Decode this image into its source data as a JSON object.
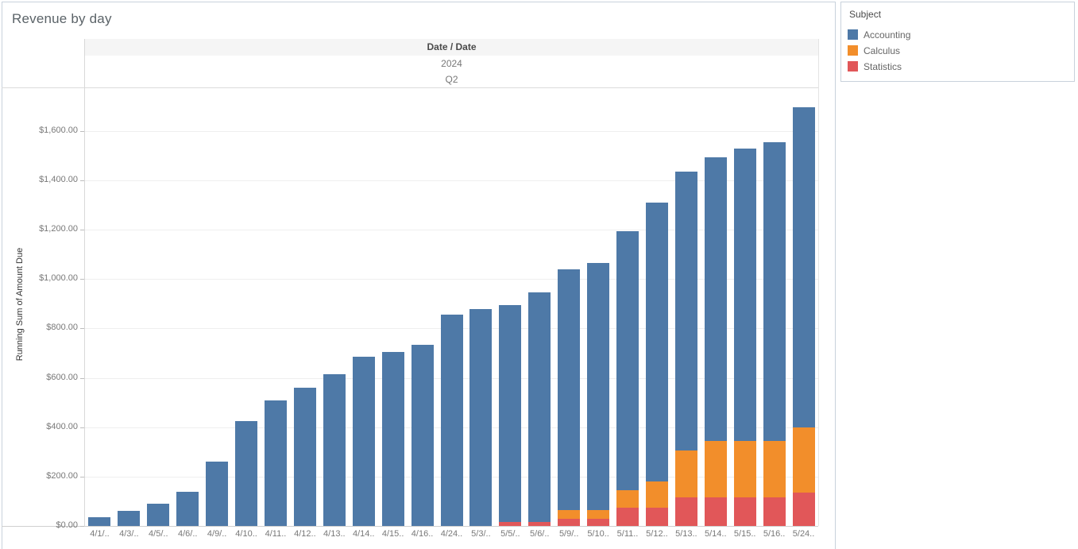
{
  "title": "Revenue by day",
  "header": {
    "field_label": "Date / Date",
    "year": "2024",
    "quarter": "Q2"
  },
  "y_axis": {
    "title": "Running Sum of Amount Due",
    "tick_labels": [
      "$0.00",
      "$200.00",
      "$400.00",
      "$600.00",
      "$800.00",
      "$1,000.00",
      "$1,200.00",
      "$1,400.00",
      "$1,600.00"
    ],
    "tick_values": [
      0,
      200,
      400,
      600,
      800,
      1000,
      1200,
      1400,
      1600
    ]
  },
  "legend": {
    "title": "Subject",
    "items": [
      {
        "label": "Accounting",
        "color": "#4e79a7"
      },
      {
        "label": "Calculus",
        "color": "#f28e2b"
      },
      {
        "label": "Statistics",
        "color": "#e15759"
      }
    ]
  },
  "colors": {
    "accounting": "#4e79a7",
    "calculus": "#f28e2b",
    "statistics": "#e15759",
    "header_band_bg": "#f5f5f5",
    "panel_border": "#c9d2dc",
    "gridline": "#efefef",
    "tick_text": "#787878"
  },
  "chart_data": {
    "type": "bar",
    "stacked": true,
    "title": "Revenue by day",
    "xlabel": "Date / Date (2024 Q2)",
    "ylabel": "Running Sum of Amount Due",
    "ylim": [
      0,
      1777
    ],
    "y_tick_step": 200,
    "grid": true,
    "legend_position": "right",
    "categories": [
      "4/1/..",
      "4/3/..",
      "4/5/..",
      "4/6/..",
      "4/9/..",
      "4/10..",
      "4/11..",
      "4/12..",
      "4/13..",
      "4/14..",
      "4/15..",
      "4/16..",
      "4/24..",
      "5/3/..",
      "5/5/..",
      "5/6/..",
      "5/9/..",
      "5/10..",
      "5/11..",
      "5/12..",
      "5/13..",
      "5/14..",
      "5/15..",
      "5/16..",
      "5/24.."
    ],
    "series": [
      {
        "name": "Accounting",
        "color": "#4e79a7",
        "values": [
          35,
          60,
          90,
          140,
          260,
          425,
          510,
          560,
          615,
          685,
          705,
          735,
          855,
          880,
          880,
          930,
          975,
          1000,
          1050,
          1130,
          1130,
          1150,
          1185,
          1210,
          1295
        ]
      },
      {
        "name": "Calculus",
        "color": "#f28e2b",
        "values": [
          0,
          0,
          0,
          0,
          0,
          0,
          0,
          0,
          0,
          0,
          0,
          0,
          0,
          0,
          0,
          0,
          35,
          35,
          70,
          105,
          190,
          230,
          230,
          230,
          265
        ]
      },
      {
        "name": "Statistics",
        "color": "#e15759",
        "values": [
          0,
          0,
          0,
          0,
          0,
          0,
          0,
          0,
          0,
          0,
          0,
          0,
          0,
          0,
          15,
          15,
          30,
          30,
          75,
          75,
          115,
          115,
          115,
          115,
          135
        ]
      }
    ],
    "totals": [
      35,
      60,
      90,
      140,
      260,
      425,
      510,
      560,
      615,
      685,
      705,
      735,
      855,
      880,
      895,
      945,
      1040,
      1065,
      1195,
      1310,
      1435,
      1495,
      1530,
      1555,
      1695
    ]
  }
}
